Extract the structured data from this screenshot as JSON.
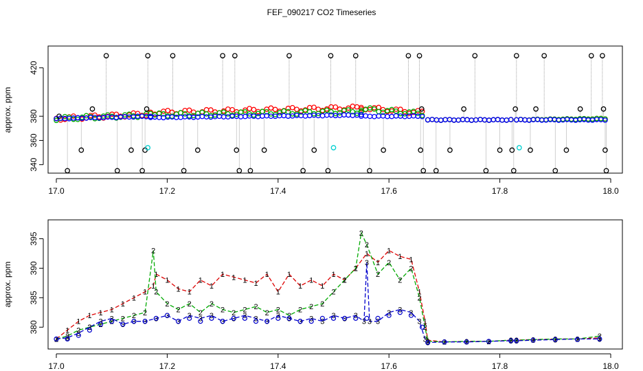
{
  "title": "FEF_090217  CO2 Timeseries",
  "chart_data": [
    {
      "type": "scatter",
      "panel": "top",
      "ylabel": "approx. ppm",
      "xlim": [
        17.0,
        18.0
      ],
      "ylim": [
        333,
        438
      ],
      "xticks": [
        17.0,
        17.2,
        17.4,
        17.6,
        17.8,
        18.0
      ],
      "xtick_labels": [
        "17.0",
        "17.2",
        "17.4",
        "17.6",
        "17.8",
        "18.0"
      ],
      "yticks": [
        340,
        360,
        380,
        420
      ],
      "ytick_labels": [
        "340",
        "360",
        "380",
        "420"
      ],
      "series": [
        {
          "name": "red",
          "color": "#ff0000",
          "baseline_segments": [
            {
              "x0": 17.0,
              "x1": 17.17,
              "y0": 378,
              "y1": 382
            },
            {
              "x0": 17.17,
              "x1": 17.55,
              "y0": 383,
              "y1": 387
            },
            {
              "x0": 17.55,
              "x1": 17.66,
              "y0": 387,
              "y1": 383
            },
            {
              "x0": 17.67,
              "x1": 17.82,
              "y0": 377,
              "y1": 377
            },
            {
              "x0": 17.83,
              "x1": 17.99,
              "y0": 377,
              "y1": 378
            }
          ]
        },
        {
          "name": "green",
          "color": "#00aa00",
          "baseline_segments": [
            {
              "x0": 17.0,
              "x1": 17.17,
              "y0": 378,
              "y1": 381
            },
            {
              "x0": 17.17,
              "x1": 17.55,
              "y0": 381,
              "y1": 384
            },
            {
              "x0": 17.55,
              "x1": 17.66,
              "y0": 386,
              "y1": 382
            },
            {
              "x0": 17.67,
              "x1": 17.82,
              "y0": 377,
              "y1": 377
            },
            {
              "x0": 17.83,
              "x1": 17.99,
              "y0": 377,
              "y1": 378
            }
          ]
        },
        {
          "name": "blue",
          "color": "#0000ff",
          "baseline_segments": [
            {
              "x0": 17.0,
              "x1": 17.17,
              "y0": 378,
              "y1": 380
            },
            {
              "x0": 17.17,
              "x1": 17.55,
              "y0": 379,
              "y1": 381
            },
            {
              "x0": 17.55,
              "x1": 17.66,
              "y0": 380,
              "y1": 380
            },
            {
              "x0": 17.67,
              "x1": 17.82,
              "y0": 377,
              "y1": 377
            },
            {
              "x0": 17.83,
              "x1": 17.99,
              "y0": 377,
              "y1": 377
            }
          ]
        },
        {
          "name": "black spikes",
          "color": "#000000",
          "points": [
            {
              "x": 17.005,
              "y": 380
            },
            {
              "x": 17.02,
              "y": 335
            },
            {
              "x": 17.045,
              "y": 352
            },
            {
              "x": 17.065,
              "y": 386
            },
            {
              "x": 17.09,
              "y": 430
            },
            {
              "x": 17.11,
              "y": 335
            },
            {
              "x": 17.135,
              "y": 352
            },
            {
              "x": 17.155,
              "y": 335
            },
            {
              "x": 17.16,
              "y": 352
            },
            {
              "x": 17.163,
              "y": 386
            },
            {
              "x": 17.165,
              "y": 430
            },
            {
              "x": 17.21,
              "y": 430
            },
            {
              "x": 17.23,
              "y": 335
            },
            {
              "x": 17.255,
              "y": 352
            },
            {
              "x": 17.3,
              "y": 430
            },
            {
              "x": 17.322,
              "y": 430
            },
            {
              "x": 17.325,
              "y": 352
            },
            {
              "x": 17.33,
              "y": 335
            },
            {
              "x": 17.35,
              "y": 335
            },
            {
              "x": 17.375,
              "y": 352
            },
            {
              "x": 17.42,
              "y": 430
            },
            {
              "x": 17.445,
              "y": 335
            },
            {
              "x": 17.465,
              "y": 352
            },
            {
              "x": 17.49,
              "y": 335
            },
            {
              "x": 17.495,
              "y": 430
            },
            {
              "x": 17.54,
              "y": 430
            },
            {
              "x": 17.565,
              "y": 335
            },
            {
              "x": 17.59,
              "y": 352
            },
            {
              "x": 17.635,
              "y": 430
            },
            {
              "x": 17.655,
              "y": 430
            },
            {
              "x": 17.657,
              "y": 352
            },
            {
              "x": 17.659,
              "y": 386
            },
            {
              "x": 17.662,
              "y": 335
            },
            {
              "x": 17.685,
              "y": 335
            },
            {
              "x": 17.71,
              "y": 352
            },
            {
              "x": 17.735,
              "y": 386
            },
            {
              "x": 17.755,
              "y": 430
            },
            {
              "x": 17.775,
              "y": 335
            },
            {
              "x": 17.8,
              "y": 352
            },
            {
              "x": 17.822,
              "y": 352
            },
            {
              "x": 17.825,
              "y": 335
            },
            {
              "x": 17.828,
              "y": 386
            },
            {
              "x": 17.83,
              "y": 430
            },
            {
              "x": 17.855,
              "y": 352
            },
            {
              "x": 17.865,
              "y": 386
            },
            {
              "x": 17.88,
              "y": 430
            },
            {
              "x": 17.9,
              "y": 335
            },
            {
              "x": 17.92,
              "y": 352
            },
            {
              "x": 17.945,
              "y": 386
            },
            {
              "x": 17.965,
              "y": 430
            },
            {
              "x": 17.985,
              "y": 430
            },
            {
              "x": 17.987,
              "y": 386
            },
            {
              "x": 17.99,
              "y": 352
            },
            {
              "x": 17.992,
              "y": 335
            }
          ]
        },
        {
          "name": "cyan",
          "color": "#00d0d0",
          "points": [
            {
              "x": 17.165,
              "y": 354
            },
            {
              "x": 17.5,
              "y": 354
            },
            {
              "x": 17.835,
              "y": 354
            }
          ]
        }
      ]
    },
    {
      "type": "line",
      "panel": "bottom",
      "ylabel": "approx. ppm",
      "xlim": [
        17.0,
        18.0
      ],
      "ylim": [
        376.3,
        398.2
      ],
      "xticks": [
        17.0,
        17.2,
        17.4,
        17.6,
        17.8,
        18.0
      ],
      "xtick_labels": [
        "17.0",
        "17.2",
        "17.4",
        "17.6",
        "17.8",
        "18.0"
      ],
      "yticks": [
        380,
        385,
        390,
        395
      ],
      "ytick_labels": [
        "380",
        "385",
        "390",
        "395"
      ],
      "series": [
        {
          "name": "1",
          "label_char": "1",
          "color": "#dd0000",
          "x": [
            17.0,
            17.02,
            17.04,
            17.06,
            17.08,
            17.1,
            17.12,
            17.14,
            17.16,
            17.175,
            17.18,
            17.2,
            17.22,
            17.24,
            17.26,
            17.28,
            17.3,
            17.32,
            17.34,
            17.36,
            17.38,
            17.4,
            17.42,
            17.44,
            17.46,
            17.48,
            17.5,
            17.52,
            17.54,
            17.56,
            17.58,
            17.6,
            17.62,
            17.64,
            17.655,
            17.665,
            17.67,
            17.7,
            17.74,
            17.78,
            17.82,
            17.83,
            17.86,
            17.9,
            17.94,
            17.98
          ],
          "y": [
            378,
            379.5,
            381,
            382,
            382.5,
            383,
            384,
            385,
            386,
            387,
            389,
            388,
            386.5,
            386,
            388,
            387,
            389,
            388.5,
            388,
            387.5,
            389,
            386,
            389,
            387,
            388,
            387,
            389,
            388,
            390,
            392.5,
            391,
            393,
            392,
            391.5,
            386,
            381,
            377.8,
            377.5,
            377.6,
            377.6,
            377.8,
            377.8,
            377.9,
            378,
            378,
            378.2
          ]
        },
        {
          "name": "2",
          "label_char": "2",
          "color": "#00aa00",
          "x": [
            17.0,
            17.02,
            17.04,
            17.06,
            17.08,
            17.1,
            17.12,
            17.14,
            17.16,
            17.175,
            17.18,
            17.2,
            17.22,
            17.24,
            17.26,
            17.28,
            17.3,
            17.32,
            17.34,
            17.36,
            17.38,
            17.4,
            17.42,
            17.44,
            17.46,
            17.48,
            17.5,
            17.52,
            17.54,
            17.55,
            17.56,
            17.58,
            17.6,
            17.62,
            17.64,
            17.655,
            17.665,
            17.67,
            17.7,
            17.74,
            17.78,
            17.82,
            17.83,
            17.86,
            17.9,
            17.94,
            17.98
          ],
          "y": [
            378,
            378.5,
            379.5,
            380,
            380.5,
            381,
            381.5,
            382,
            382.5,
            393,
            386,
            384,
            383,
            384,
            382.5,
            384,
            383,
            382.5,
            383,
            383.5,
            382.5,
            383,
            382,
            383,
            383.5,
            384,
            386,
            388,
            390,
            396,
            394,
            389,
            391,
            388,
            390,
            385,
            380,
            377.6,
            377.5,
            377.6,
            377.6,
            377.8,
            377.8,
            377.9,
            378,
            378,
            378.5
          ]
        },
        {
          "name": "3",
          "label_char": "3",
          "color": "#0000cc",
          "x": [
            17.0,
            17.02,
            17.04,
            17.06,
            17.08,
            17.1,
            17.12,
            17.14,
            17.16,
            17.18,
            17.2,
            17.22,
            17.24,
            17.26,
            17.28,
            17.3,
            17.32,
            17.34,
            17.36,
            17.38,
            17.4,
            17.42,
            17.44,
            17.46,
            17.48,
            17.5,
            17.52,
            17.54,
            17.555,
            17.56,
            17.565,
            17.58,
            17.6,
            17.62,
            17.64,
            17.655,
            17.665,
            17.67,
            17.7,
            17.74,
            17.78,
            17.82,
            17.83,
            17.86,
            17.9,
            17.94,
            17.98
          ],
          "y": [
            378,
            378.2,
            379,
            380,
            381,
            381.5,
            380.5,
            381,
            381,
            381.5,
            382,
            381,
            382,
            381.5,
            382,
            381,
            381.5,
            382,
            381.5,
            381,
            382,
            381.5,
            381,
            381.5,
            381,
            382,
            381.5,
            382,
            381,
            391,
            381,
            381,
            382.5,
            383,
            382.5,
            381,
            378,
            377.4,
            377.5,
            377.5,
            377.6,
            377.7,
            377.7,
            377.8,
            377.9,
            378,
            378
          ]
        },
        {
          "name": "circles",
          "label_char": "o",
          "color": "#0000cc",
          "x": [
            17.0,
            17.02,
            17.04,
            17.06,
            17.08,
            17.1,
            17.12,
            17.14,
            17.16,
            17.18,
            17.2,
            17.22,
            17.24,
            17.26,
            17.28,
            17.3,
            17.32,
            17.34,
            17.36,
            17.38,
            17.4,
            17.42,
            17.44,
            17.46,
            17.48,
            17.5,
            17.52,
            17.54,
            17.56,
            17.58,
            17.6,
            17.62,
            17.64,
            17.66,
            17.67,
            17.7,
            17.74,
            17.78,
            17.82,
            17.83,
            17.86,
            17.9,
            17.94,
            17.98
          ],
          "y": [
            378,
            378,
            378.6,
            379.5,
            380.5,
            381,
            380.5,
            381,
            381,
            381.5,
            382,
            381,
            381.5,
            381,
            381.5,
            381,
            381.5,
            381.5,
            381,
            381,
            381.5,
            381.5,
            381,
            381,
            381.5,
            381.5,
            381.5,
            381.5,
            381.5,
            381.5,
            382,
            382.5,
            382,
            380,
            377.4,
            377.5,
            377.5,
            377.6,
            377.7,
            377.7,
            377.8,
            377.9,
            377.9,
            378
          ]
        }
      ]
    }
  ]
}
